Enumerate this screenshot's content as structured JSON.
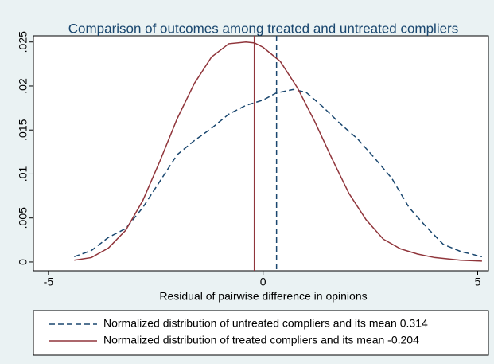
{
  "chart_data": {
    "type": "line",
    "title": "Comparison of outcomes among treated and untreated compliers",
    "x_label": "Residual of pairwise difference in opinions",
    "xlim": [
      -5.35,
      5.25
    ],
    "xticks": [
      -5,
      0,
      5
    ],
    "ylim": [
      -0.001,
      0.0257
    ],
    "yticks": [
      {
        "value": 0,
        "label": "0"
      },
      {
        "value": 0.005,
        "label": ".005"
      },
      {
        "value": 0.01,
        "label": ".01"
      },
      {
        "value": 0.015,
        "label": ".015"
      },
      {
        "value": 0.02,
        "label": ".02"
      },
      {
        "value": 0.025,
        "label": ".025"
      }
    ],
    "grid": false,
    "legend": "bottom",
    "series": [
      {
        "name": "Normalized distribution of untreated compliers and its mean 0.314",
        "color": "#1a476f",
        "dashed": true,
        "mean": 0.314,
        "x": [
          -4.4,
          -4,
          -3.6,
          -3.2,
          -2.8,
          -2.4,
          -2,
          -1.6,
          -1.2,
          -0.8,
          -0.4,
          0,
          0.3,
          0.7,
          1,
          1.4,
          1.8,
          2.2,
          2.6,
          3,
          3.4,
          3.8,
          4.2,
          4.6,
          5.1
        ],
        "values": [
          0.0006,
          0.0013,
          0.0028,
          0.0038,
          0.0062,
          0.0092,
          0.0122,
          0.0138,
          0.0152,
          0.0168,
          0.0178,
          0.0184,
          0.0192,
          0.0196,
          0.0193,
          0.0176,
          0.0157,
          0.014,
          0.0118,
          0.0095,
          0.0062,
          0.004,
          0.002,
          0.0012,
          0.0006
        ]
      },
      {
        "name": "Normalized distribution of treated compliers and its mean -0.204",
        "color": "#90353b",
        "dashed": false,
        "mean": -0.204,
        "x": [
          -4.4,
          -4,
          -3.6,
          -3.2,
          -2.8,
          -2.4,
          -2,
          -1.6,
          -1.2,
          -0.8,
          -0.4,
          -0.2,
          0,
          0.4,
          0.8,
          1.2,
          1.6,
          2,
          2.4,
          2.8,
          3.2,
          3.6,
          4,
          4.6,
          5.1
        ],
        "values": [
          0.0002,
          0.0005,
          0.0016,
          0.0036,
          0.007,
          0.0115,
          0.0163,
          0.0203,
          0.0233,
          0.0248,
          0.025,
          0.0249,
          0.0244,
          0.0228,
          0.0198,
          0.016,
          0.0118,
          0.0078,
          0.0048,
          0.0026,
          0.0015,
          0.0009,
          0.0005,
          0.0002,
          0.0001
        ]
      }
    ]
  }
}
